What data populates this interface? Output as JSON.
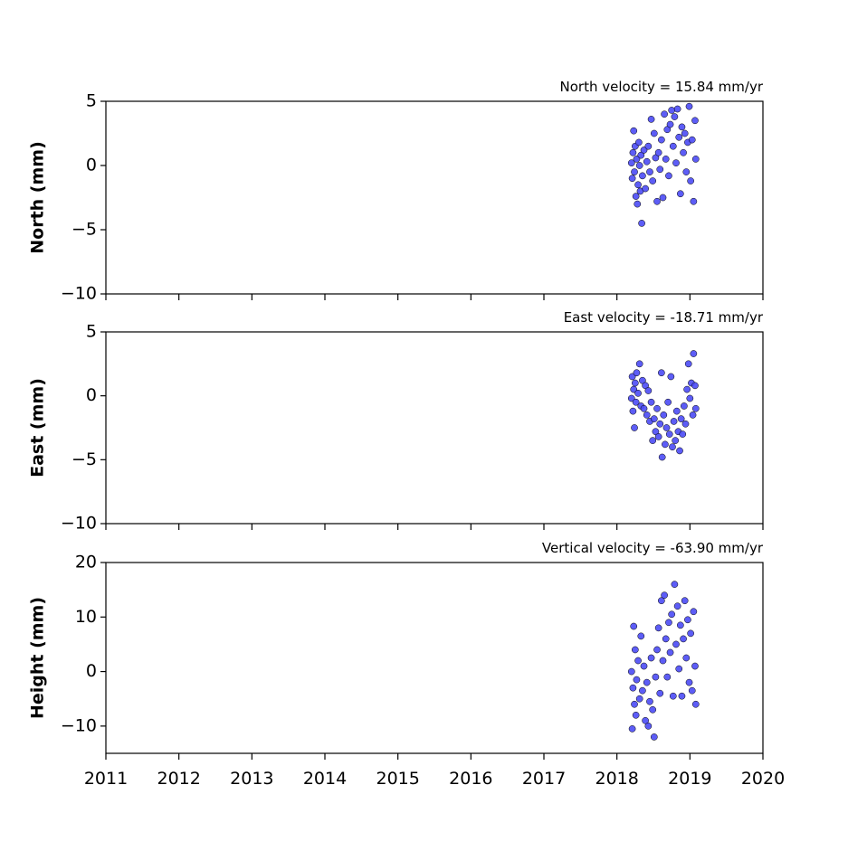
{
  "chart_data": [
    {
      "type": "scatter",
      "title": "North velocity = 15.84 mm/yr",
      "ylabel": "North (mm)",
      "color": "#4b4bf5",
      "xlim": [
        2011,
        2020
      ],
      "xticks": [
        2011,
        2012,
        2013,
        2014,
        2015,
        2016,
        2017,
        2018,
        2019,
        2020
      ],
      "xtick_labels": false,
      "ylim": [
        -10,
        5
      ],
      "yticks": [
        5,
        0,
        {
          "value": -5,
          "label": "−5"
        },
        {
          "value": -10,
          "label": "−10"
        }
      ],
      "x": [
        2018.2,
        2018.21,
        2018.22,
        2018.23,
        2018.24,
        2018.25,
        2018.26,
        2018.27,
        2018.28,
        2018.29,
        2018.3,
        2018.31,
        2018.32,
        2018.33,
        2018.34,
        2018.35,
        2018.37,
        2018.39,
        2018.41,
        2018.43,
        2018.45,
        2018.47,
        2018.49,
        2018.51,
        2018.53,
        2018.55,
        2018.57,
        2018.59,
        2018.61,
        2018.63,
        2018.65,
        2018.67,
        2018.69,
        2018.71,
        2018.73,
        2018.75,
        2018.77,
        2018.79,
        2018.81,
        2018.83,
        2018.85,
        2018.87,
        2018.89,
        2018.91,
        2018.93,
        2018.95,
        2018.97,
        2018.99,
        2019.01,
        2019.03,
        2019.05,
        2019.07,
        2019.08
      ],
      "values": [
        0.2,
        -1.0,
        1.0,
        2.7,
        -0.5,
        1.5,
        -2.4,
        0.5,
        -3.0,
        -1.5,
        1.8,
        0.0,
        -2.0,
        0.8,
        -4.5,
        -0.8,
        1.2,
        -1.8,
        0.3,
        1.5,
        -0.5,
        3.6,
        -1.2,
        2.5,
        0.6,
        -2.8,
        1.0,
        -0.3,
        2.0,
        -2.5,
        4.0,
        0.5,
        2.8,
        -0.8,
        3.2,
        4.3,
        1.5,
        3.8,
        0.2,
        4.4,
        2.2,
        -2.2,
        3.0,
        1.0,
        2.5,
        -0.5,
        1.8,
        4.6,
        -1.2,
        2.0,
        -2.8,
        3.5,
        0.5
      ]
    },
    {
      "type": "scatter",
      "title": "East velocity = -18.71 mm/yr",
      "ylabel": "East (mm)",
      "color": "#4b4bf5",
      "xlim": [
        2011,
        2020
      ],
      "xticks": [
        2011,
        2012,
        2013,
        2014,
        2015,
        2016,
        2017,
        2018,
        2019,
        2020
      ],
      "xtick_labels": false,
      "ylim": [
        -10,
        5
      ],
      "yticks": [
        5,
        0,
        {
          "value": -5,
          "label": "−5"
        },
        {
          "value": -10,
          "label": "−10"
        }
      ],
      "x": [
        2018.2,
        2018.21,
        2018.22,
        2018.23,
        2018.24,
        2018.25,
        2018.26,
        2018.27,
        2018.29,
        2018.31,
        2018.33,
        2018.35,
        2018.37,
        2018.39,
        2018.41,
        2018.43,
        2018.45,
        2018.47,
        2018.49,
        2018.51,
        2018.53,
        2018.55,
        2018.57,
        2018.59,
        2018.61,
        2018.62,
        2018.64,
        2018.66,
        2018.68,
        2018.7,
        2018.72,
        2018.74,
        2018.76,
        2018.78,
        2018.8,
        2018.82,
        2018.84,
        2018.86,
        2018.88,
        2018.9,
        2018.92,
        2018.94,
        2018.96,
        2018.98,
        2019.0,
        2019.02,
        2019.04,
        2019.05,
        2019.07,
        2019.08
      ],
      "values": [
        -0.2,
        1.5,
        -1.2,
        0.5,
        -2.5,
        1.0,
        -0.5,
        1.8,
        0.2,
        2.5,
        -0.8,
        1.2,
        -1.0,
        0.8,
        -1.5,
        0.4,
        -2.0,
        -0.5,
        -3.5,
        -1.8,
        -2.8,
        -1.0,
        -3.2,
        -2.2,
        1.8,
        -4.8,
        -1.5,
        -3.8,
        -2.5,
        -0.5,
        -3.0,
        1.5,
        -4.0,
        -2.0,
        -3.5,
        -1.2,
        -2.8,
        -4.3,
        -1.8,
        -3.0,
        -0.8,
        -2.2,
        0.5,
        2.5,
        -0.2,
        1.0,
        -1.5,
        3.3,
        0.8,
        -1.0
      ]
    },
    {
      "type": "scatter",
      "title": "Vertical velocity = -63.90 mm/yr",
      "ylabel": "Height (mm)",
      "color": "#4b4bf5",
      "xlim": [
        2011,
        2020
      ],
      "xticks": [
        2011,
        2012,
        2013,
        2014,
        2015,
        2016,
        2017,
        2018,
        2019,
        2020
      ],
      "xtick_labels": true,
      "ylim": [
        -15,
        20
      ],
      "yticks": [
        20,
        10,
        0,
        {
          "value": -10,
          "label": "−10"
        }
      ],
      "x": [
        2018.2,
        2018.21,
        2018.22,
        2018.23,
        2018.24,
        2018.25,
        2018.26,
        2018.27,
        2018.29,
        2018.31,
        2018.33,
        2018.35,
        2018.37,
        2018.39,
        2018.41,
        2018.43,
        2018.45,
        2018.47,
        2018.49,
        2018.51,
        2018.53,
        2018.55,
        2018.57,
        2018.59,
        2018.61,
        2018.63,
        2018.65,
        2018.67,
        2018.69,
        2018.71,
        2018.73,
        2018.75,
        2018.77,
        2018.79,
        2018.81,
        2018.83,
        2018.85,
        2018.87,
        2018.89,
        2018.91,
        2018.93,
        2018.95,
        2018.97,
        2018.99,
        2019.01,
        2019.03,
        2019.05,
        2019.07,
        2019.08
      ],
      "values": [
        0.0,
        -10.5,
        -3.0,
        8.3,
        -6.0,
        4.0,
        -8.0,
        -1.5,
        2.0,
        -5.0,
        6.5,
        -3.5,
        1.0,
        -9.0,
        -2.0,
        -10.0,
        -5.5,
        2.5,
        -7.0,
        -12.0,
        -1.0,
        4.0,
        8.0,
        -4.0,
        13.0,
        2.0,
        14.0,
        6.0,
        -1.0,
        9.0,
        3.5,
        10.5,
        -4.5,
        16.0,
        5.0,
        12.0,
        0.5,
        8.5,
        -4.5,
        6.0,
        13.0,
        2.5,
        9.5,
        -2.0,
        7.0,
        -3.5,
        11.0,
        1.0,
        -6.0
      ]
    }
  ]
}
